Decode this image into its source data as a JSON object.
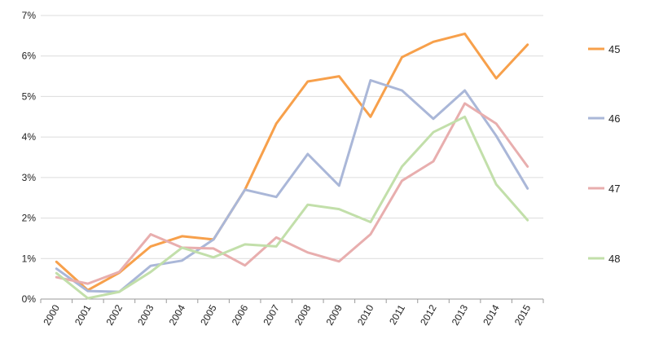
{
  "chart_data": {
    "type": "line",
    "x": [
      "2000",
      "2001",
      "2002",
      "2003",
      "2004",
      "2005",
      "2006",
      "2007",
      "2008",
      "2009",
      "2010",
      "2011",
      "2012",
      "2013",
      "2014",
      "2015"
    ],
    "ylim": [
      0,
      7
    ],
    "yticks": [
      "0%",
      "1%",
      "2%",
      "3%",
      "4%",
      "5%",
      "6%",
      "7%"
    ],
    "grid": true,
    "legend_position": "right",
    "series": [
      {
        "name": "45",
        "color": "#f7a04b",
        "values": [
          0.92,
          0.22,
          0.65,
          1.3,
          1.55,
          1.47,
          2.7,
          4.33,
          5.37,
          5.5,
          4.5,
          5.97,
          6.35,
          6.55,
          5.45,
          6.28
        ]
      },
      {
        "name": "46",
        "color": "#aab7d8",
        "values": [
          0.75,
          0.2,
          0.18,
          0.82,
          0.95,
          1.47,
          2.7,
          2.52,
          3.58,
          2.8,
          5.4,
          5.15,
          4.45,
          5.15,
          4.03,
          2.73
        ]
      },
      {
        "name": "47",
        "color": "#e8aeae",
        "values": [
          0.54,
          0.38,
          0.67,
          1.6,
          1.27,
          1.25,
          0.83,
          1.52,
          1.15,
          0.93,
          1.6,
          2.92,
          3.4,
          4.83,
          4.33,
          3.27
        ]
      },
      {
        "name": "48",
        "color": "#c2dfaa",
        "values": [
          0.64,
          0.02,
          0.18,
          0.67,
          1.27,
          1.03,
          1.35,
          1.3,
          2.33,
          2.22,
          1.9,
          3.27,
          4.12,
          4.5,
          2.83,
          1.95
        ]
      }
    ]
  }
}
